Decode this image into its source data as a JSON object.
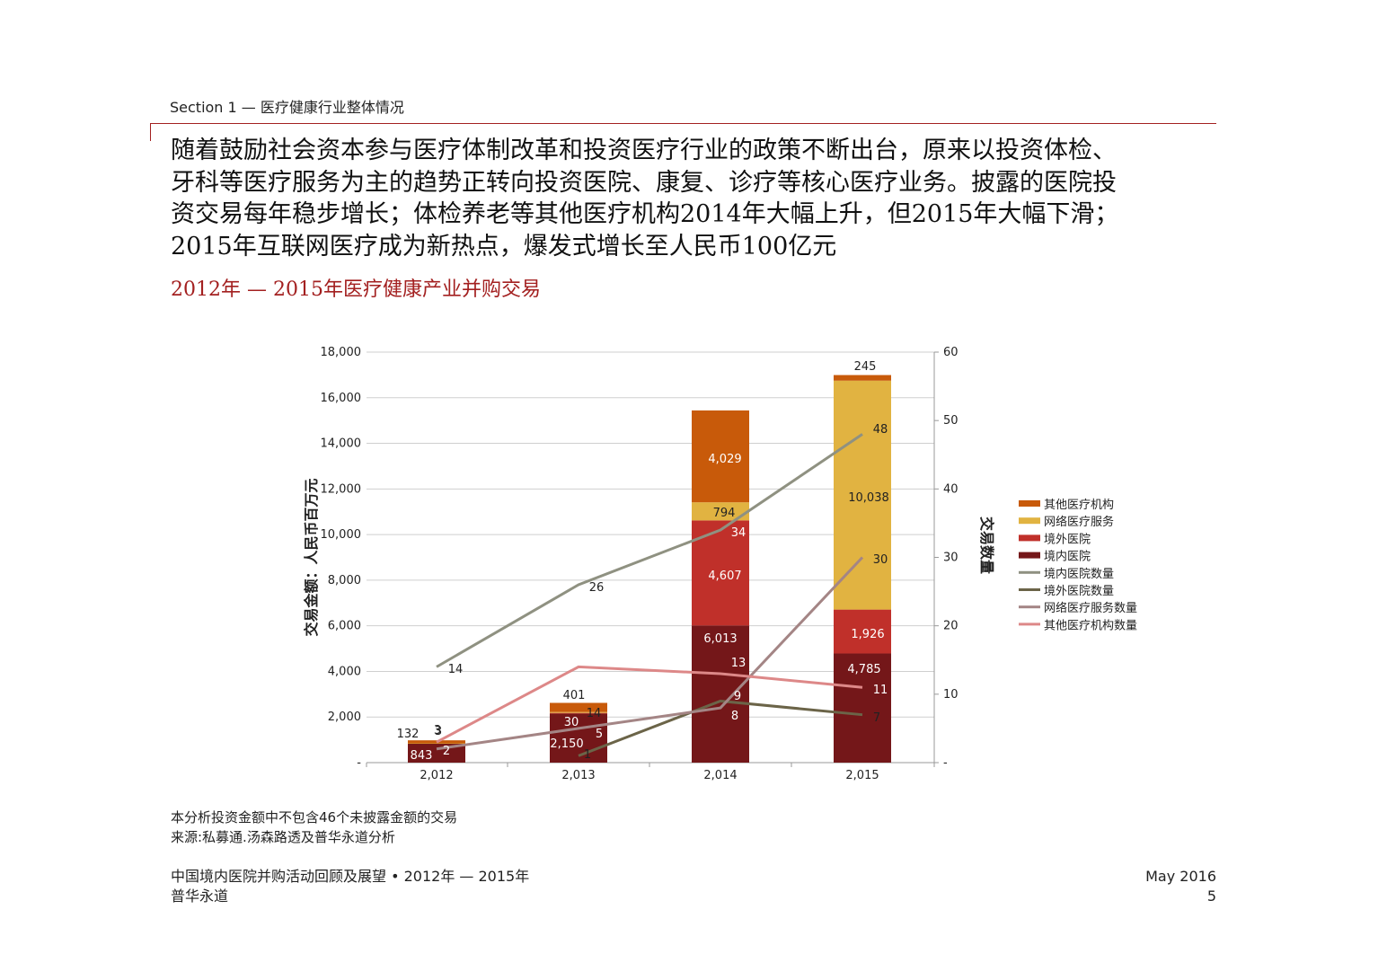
{
  "section": "Section 1 — 医疗健康行业整体情况",
  "headline": [
    "随着鼓励社会资本参与医疗体制改革和投资医疗行业的政策不断出台，原来以投资体检、",
    "牙科等医疗服务为主的趋势正转向投资医院、康复、诊疗等核心医疗业务。披露的医院投",
    "资交易每年稳步增长；体检养老等其他医疗机构2014年大幅上升，但2015年大幅下滑；",
    "2015年互联网医疗成为新热点，爆发式增长至人民币100亿元"
  ],
  "chart_title": "2012年 — 2015年医疗健康产业并购交易",
  "chart_data": {
    "type": "bar",
    "stacked": true,
    "categories": [
      "2,012",
      "2,013",
      "2,014",
      "2,015"
    ],
    "ylabel": "交易金额：人民币百万元",
    "y2label": "交易数量",
    "ylim": [
      0,
      18000
    ],
    "y2lim": [
      0,
      60
    ],
    "y_ticks": [
      "-",
      "2,000",
      "4,000",
      "6,000",
      "8,000",
      "10,000",
      "12,000",
      "14,000",
      "16,000",
      "18,000"
    ],
    "y2_ticks": [
      "-",
      "10",
      "20",
      "30",
      "40",
      "50",
      "60"
    ],
    "grid": true,
    "legend_position": "right",
    "bar_series": [
      {
        "name": "境内医院",
        "color": "#741719",
        "values": [
          843,
          2150,
          6013,
          4785
        ],
        "labels": [
          "843",
          "2,150",
          "6,013",
          "4,785"
        ]
      },
      {
        "name": "境外医院",
        "color": "#c0302a",
        "values": [
          0,
          30,
          4607,
          1926
        ],
        "labels": [
          "",
          "30",
          "4,607",
          "1,926"
        ]
      },
      {
        "name": "网络医疗服务",
        "color": "#e1b341",
        "values": [
          3,
          39,
          794,
          10038
        ],
        "labels": [
          "3",
          "",
          "794",
          "10,038"
        ]
      },
      {
        "name": "其他医疗机构",
        "color": "#c85a0a",
        "values": [
          132,
          401,
          4029,
          245
        ],
        "labels": [
          "132",
          "401",
          "4,029",
          "245"
        ]
      }
    ],
    "line_series": [
      {
        "name": "境内医院数量",
        "color": "#8f9181",
        "values": [
          14,
          26,
          34,
          48
        ]
      },
      {
        "name": "境外医院数量",
        "color": "#6b6448",
        "values": [
          null,
          1,
          9,
          7
        ]
      },
      {
        "name": "网络医疗服务数量",
        "color": "#a48585",
        "values": [
          2,
          5,
          8,
          30
        ]
      },
      {
        "name": "其他医疗机构数量",
        "color": "#dd8888",
        "values": [
          3,
          14,
          13,
          11
        ]
      }
    ],
    "legend_order": [
      "其他医疗机构",
      "网络医疗服务",
      "境外医院",
      "境内医院",
      "境内医院数量",
      "境外医院数量",
      "网络医疗服务数量",
      "其他医疗机构数量"
    ]
  },
  "notes": {
    "note1": "本分析投资金额中不包含46个未披露金额的交易",
    "note2": "来源:私募通.汤森路透及普华永道分析"
  },
  "footer": {
    "report": "中国境内医院并购活动回顾及展望 • 2012年 — 2015年",
    "firm": "普华永道",
    "date": "May 2016",
    "page": "5"
  }
}
